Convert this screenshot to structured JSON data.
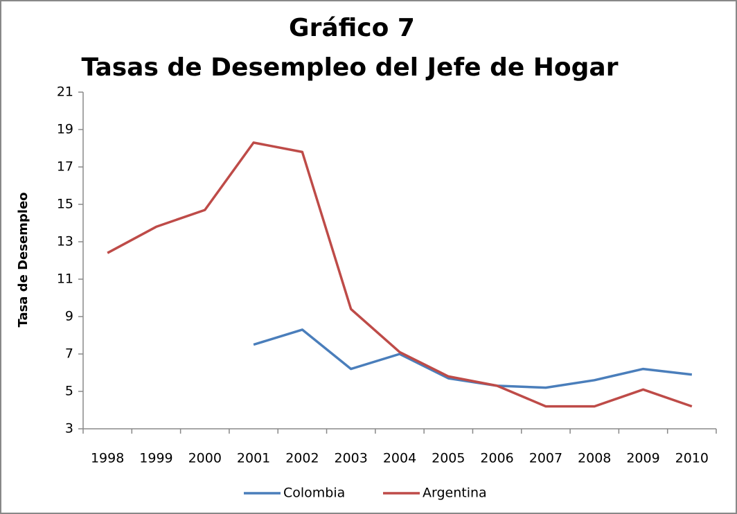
{
  "chart_data": {
    "type": "line",
    "title": "Gráfico 7",
    "subtitle": "Tasas de Desempleo del Jefe de Hogar",
    "y_label": "Tasa de Desempleo",
    "categories": [
      "1998",
      "1999",
      "2000",
      "2001",
      "2002",
      "2003",
      "2004",
      "2005",
      "2006",
      "2007",
      "2008",
      "2009",
      "2010"
    ],
    "series": [
      {
        "name": "Colombia",
        "color": "#4a7ebb",
        "values": [
          null,
          null,
          null,
          7.5,
          8.3,
          6.2,
          7.0,
          5.7,
          5.3,
          5.2,
          5.6,
          6.2,
          5.9
        ]
      },
      {
        "name": "Argentina",
        "color": "#be4b48",
        "values": [
          12.4,
          13.8,
          14.7,
          18.3,
          17.8,
          9.4,
          7.1,
          5.8,
          5.3,
          4.2,
          4.2,
          5.1,
          4.2
        ]
      }
    ],
    "ylim": [
      3,
      21
    ],
    "yticks": [
      3,
      5,
      7,
      9,
      11,
      13,
      15,
      17,
      19,
      21
    ],
    "grid": false,
    "legend": "bottom"
  }
}
